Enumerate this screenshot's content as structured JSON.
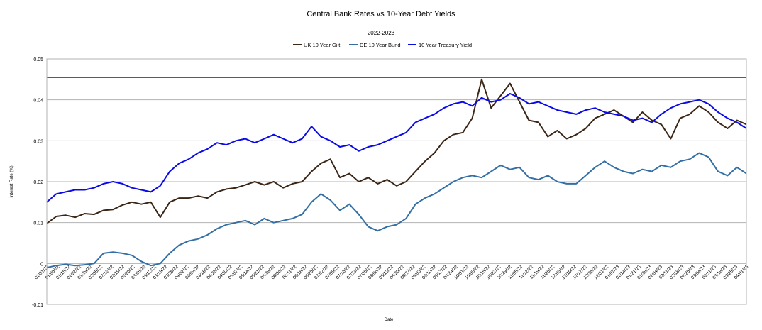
{
  "chart_data": {
    "type": "line",
    "title": "Central Bank Rates vs 10-Year Debt Yields",
    "subtitle": "2022-2023",
    "xlabel": "Date",
    "ylabel": "Interest Rate (%)",
    "ylim": [
      -0.01,
      0.05
    ],
    "yticks": [
      -0.01,
      0,
      0.01,
      0.02,
      0.03,
      0.04,
      0.05
    ],
    "grid": true,
    "legend_position": "top-center",
    "x_start": "01/01/22",
    "x_end": "04/05/23",
    "xtick_labels": [
      "01/01/22",
      "01/08/22",
      "01/15/22",
      "01/22/22",
      "01/29/22",
      "02/05/22",
      "02/12/22",
      "02/19/22",
      "02/26/22",
      "03/05/22",
      "03/12/22",
      "03/19/22",
      "03/26/22",
      "04/02/22",
      "04/09/22",
      "04/16/22",
      "04/23/22",
      "04/30/22",
      "05/07/22",
      "05/14/22",
      "05/21/22",
      "05/28/22",
      "06/04/22",
      "06/11/22",
      "06/18/22",
      "06/25/22",
      "07/02/22",
      "07/09/22",
      "07/16/22",
      "07/23/22",
      "07/30/22",
      "08/06/22",
      "08/13/22",
      "08/20/22",
      "08/27/22",
      "09/03/22",
      "09/10/22",
      "09/17/22",
      "09/24/22",
      "10/01/22",
      "10/08/22",
      "10/15/22",
      "10/22/22",
      "10/29/22",
      "11/05/22",
      "11/12/22",
      "11/19/22",
      "11/26/22",
      "12/03/22",
      "12/10/22",
      "12/17/22",
      "12/24/22",
      "12/31/22",
      "01/07/23",
      "01/14/23",
      "01/21/23",
      "01/28/23",
      "02/04/23",
      "02/11/23",
      "02/18/23",
      "02/25/23",
      "03/04/23",
      "03/11/23",
      "03/18/23",
      "03/25/23",
      "04/01/23"
    ],
    "reference_line": {
      "y": 0.0455,
      "color": "#e0241b"
    },
    "series": [
      {
        "name": "UK 10 Year Gilt",
        "color": "#3b2616",
        "values": [
          0.0098,
          0.0115,
          0.0118,
          0.0113,
          0.0122,
          0.012,
          0.013,
          0.0132,
          0.0143,
          0.015,
          0.0145,
          0.015,
          0.0113,
          0.015,
          0.016,
          0.016,
          0.0165,
          0.016,
          0.0175,
          0.0182,
          0.0185,
          0.0192,
          0.02,
          0.0192,
          0.02,
          0.0185,
          0.0195,
          0.02,
          0.0225,
          0.0245,
          0.0255,
          0.021,
          0.022,
          0.02,
          0.021,
          0.0195,
          0.0205,
          0.019,
          0.02,
          0.0225,
          0.025,
          0.027,
          0.03,
          0.0315,
          0.032,
          0.0355,
          0.045,
          0.038,
          0.041,
          0.044,
          0.0395,
          0.035,
          0.0345,
          0.031,
          0.0325,
          0.0305,
          0.0315,
          0.033,
          0.0355,
          0.0365,
          0.0375,
          0.036,
          0.0345,
          0.037,
          0.035,
          0.034,
          0.0305,
          0.0355,
          0.0365,
          0.0385,
          0.037,
          0.0345,
          0.033,
          0.035,
          0.034
        ]
      },
      {
        "name": "DE 10 Year Bund",
        "color": "#336fa5",
        "values": [
          -0.001,
          -0.0005,
          -0.0002,
          -0.0005,
          -0.0003,
          0.0,
          0.0025,
          0.0028,
          0.0025,
          0.002,
          0.0005,
          -0.0005,
          0.0,
          0.0025,
          0.0045,
          0.0055,
          0.006,
          0.007,
          0.0085,
          0.0095,
          0.01,
          0.0105,
          0.0095,
          0.011,
          0.01,
          0.0105,
          0.011,
          0.012,
          0.015,
          0.017,
          0.0155,
          0.013,
          0.0145,
          0.012,
          0.009,
          0.008,
          0.009,
          0.0095,
          0.011,
          0.0145,
          0.016,
          0.017,
          0.0185,
          0.02,
          0.021,
          0.0215,
          0.021,
          0.0225,
          0.024,
          0.023,
          0.0235,
          0.021,
          0.0205,
          0.0215,
          0.02,
          0.0195,
          0.0195,
          0.0215,
          0.0235,
          0.025,
          0.0235,
          0.0225,
          0.022,
          0.023,
          0.0225,
          0.024,
          0.0235,
          0.025,
          0.0255,
          0.027,
          0.026,
          0.0225,
          0.0215,
          0.0235,
          0.022
        ]
      },
      {
        "name": "10 Year Treasury Yield",
        "color": "#0a0ae6",
        "values": [
          0.015,
          0.017,
          0.0175,
          0.018,
          0.018,
          0.0185,
          0.0195,
          0.02,
          0.0195,
          0.0185,
          0.018,
          0.0175,
          0.019,
          0.0225,
          0.0245,
          0.0255,
          0.027,
          0.028,
          0.0295,
          0.029,
          0.03,
          0.0305,
          0.0295,
          0.0305,
          0.0315,
          0.0305,
          0.0295,
          0.0305,
          0.0335,
          0.031,
          0.03,
          0.0285,
          0.029,
          0.0275,
          0.0285,
          0.029,
          0.03,
          0.031,
          0.032,
          0.0345,
          0.0355,
          0.0365,
          0.038,
          0.039,
          0.0395,
          0.0385,
          0.0405,
          0.0395,
          0.04,
          0.0415,
          0.0405,
          0.039,
          0.0395,
          0.0385,
          0.0375,
          0.037,
          0.0365,
          0.0375,
          0.038,
          0.037,
          0.0365,
          0.036,
          0.035,
          0.0355,
          0.0345,
          0.0365,
          0.038,
          0.039,
          0.0395,
          0.04,
          0.039,
          0.037,
          0.0355,
          0.0345,
          0.033
        ]
      }
    ]
  }
}
